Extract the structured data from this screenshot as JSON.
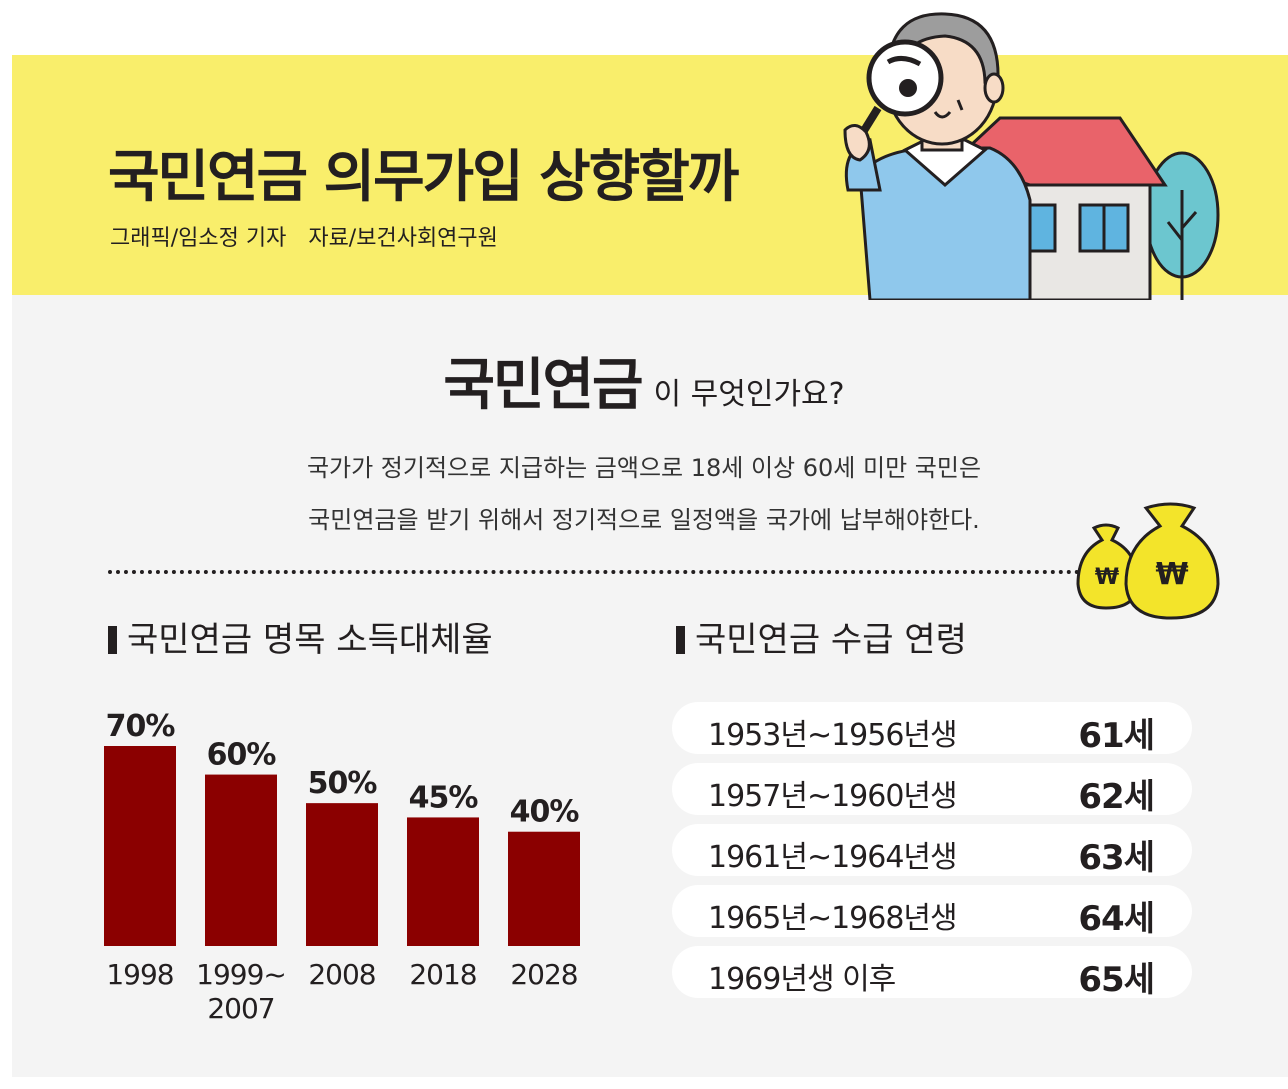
{
  "header": {
    "title": "국민연금 의무가입 상향할까",
    "credit_graphic": "그래픽/임소정 기자",
    "credit_source": "자료/보건사회연구원"
  },
  "intro": {
    "question_bold": "국민연금",
    "question_rest": "이 무엇인가요?",
    "line1": "국가가 정기적으로 지급하는 금액으로 18세 이상 60세 미만 국민은",
    "line2": "국민연금을 받기 위해서 정기적으로 일정액을 국가에 납부해야한다."
  },
  "icons": {
    "currency_symbol": "₩"
  },
  "colors": {
    "header_bg": "#f9ee6b",
    "panel_bg": "#f4f4f4",
    "bar": "#8b0000",
    "text": "#231f20"
  },
  "chart_data": {
    "type": "bar",
    "title": "국민연금 명목 소득대체율",
    "categories": [
      [
        "1998"
      ],
      [
        "1999~",
        "2007"
      ],
      [
        "2008"
      ],
      [
        "2018"
      ],
      [
        "2028"
      ]
    ],
    "values": [
      70,
      60,
      50,
      45,
      40
    ],
    "value_labels": [
      "70%",
      "60%",
      "50%",
      "45%",
      "40%"
    ],
    "ylim": [
      0,
      70
    ],
    "grid": false,
    "legend": "none"
  },
  "ages": {
    "title": "국민연금 수급 연령",
    "rows": [
      {
        "range": "1953년~1956년생",
        "age": "61세"
      },
      {
        "range": "1957년~1960년생",
        "age": "62세"
      },
      {
        "range": "1961년~1964년생",
        "age": "63세"
      },
      {
        "range": "1965년~1968년생",
        "age": "64세"
      },
      {
        "range": "1969년생 이후",
        "age": "65세"
      }
    ]
  }
}
